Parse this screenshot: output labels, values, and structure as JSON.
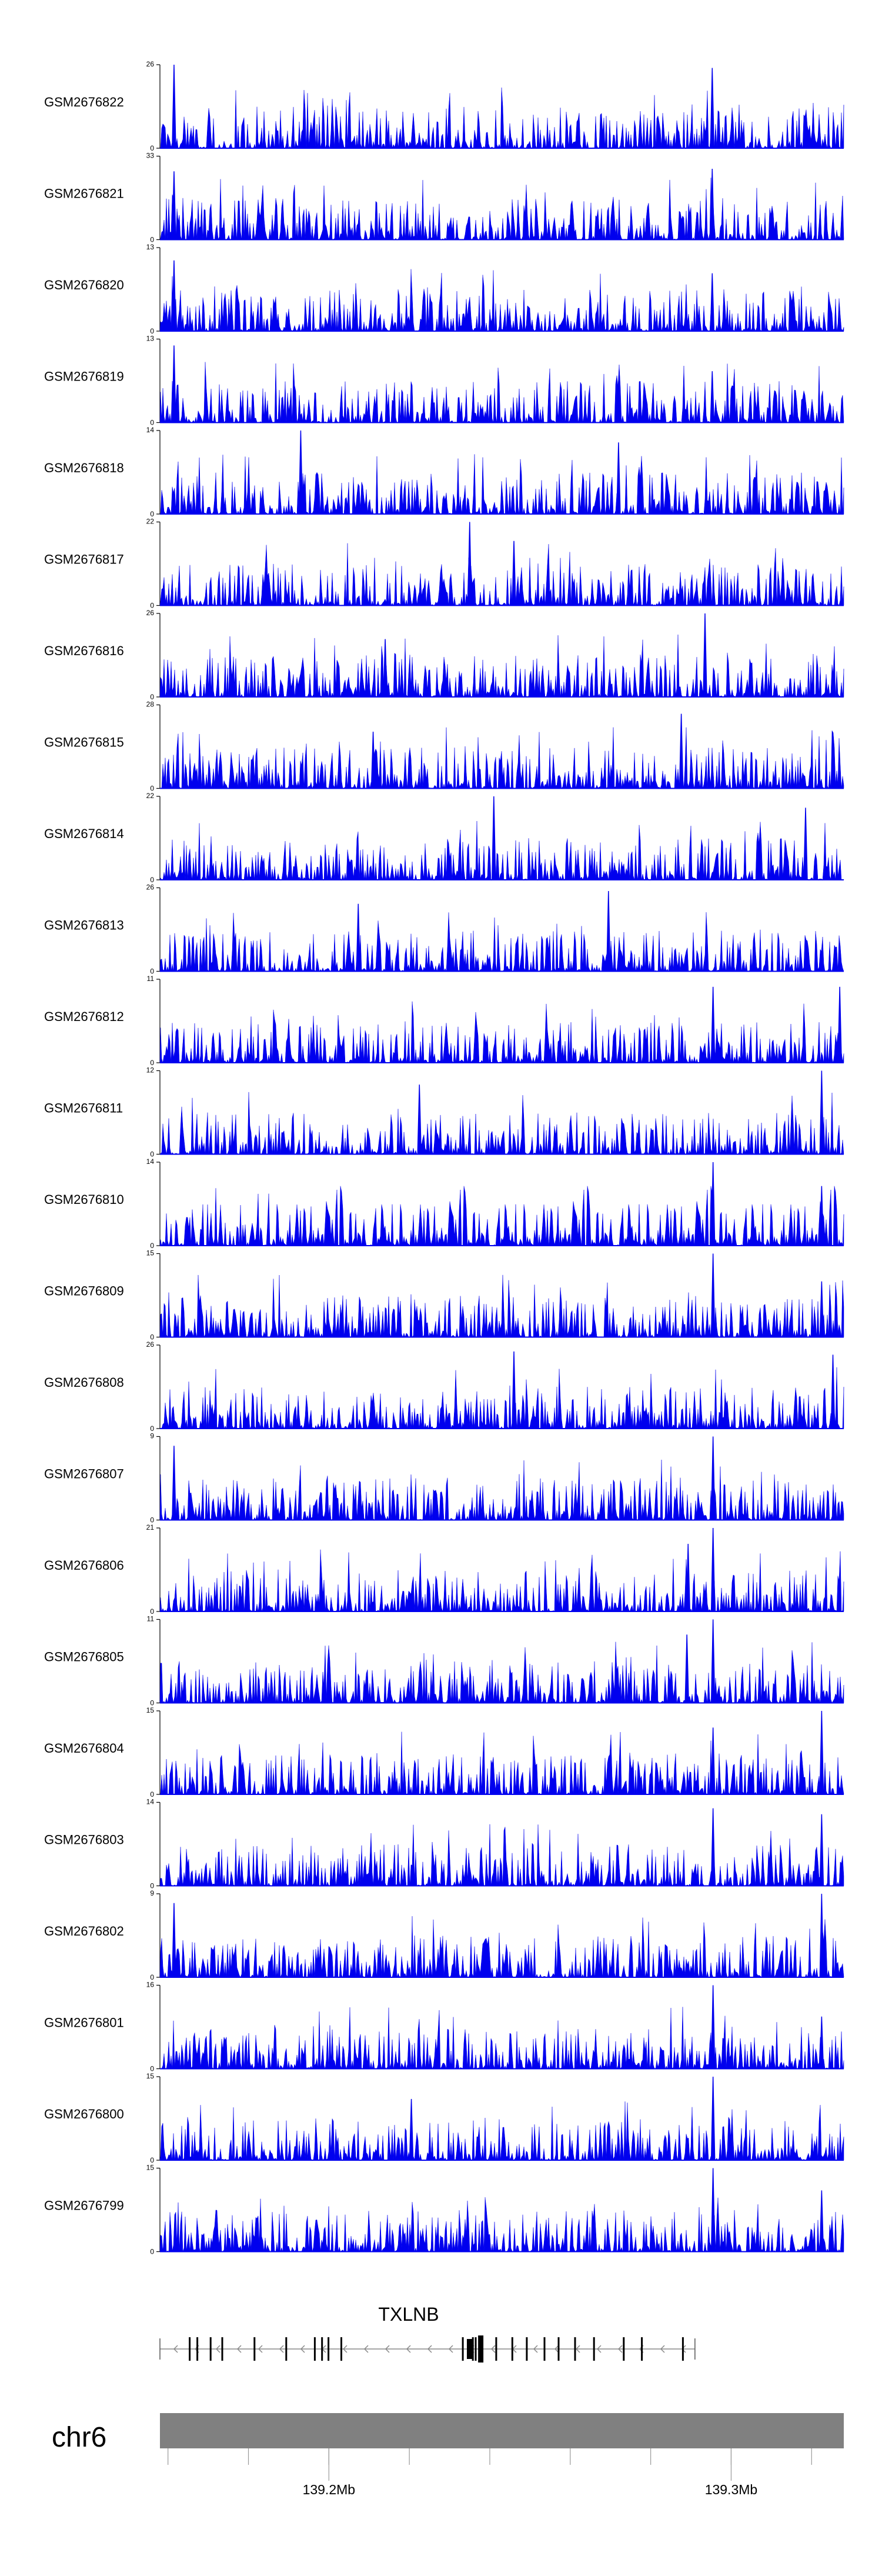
{
  "chart_data": {
    "type": "area",
    "title": "",
    "chromosome": "chr6",
    "fill_color": "#0000EE",
    "axis_color": "#000000",
    "x_range_mb": [
      139.158,
      139.328
    ],
    "tracks": [
      {
        "name": "GSM2676822",
        "ymax": 26,
        "ymin": 0,
        "peaks": [
          [
            139.1615,
            26
          ],
          [
            139.2953,
            25
          ]
        ]
      },
      {
        "name": "GSM2676821",
        "ymax": 33,
        "ymin": 0,
        "peaks": [
          [
            139.1615,
            27
          ],
          [
            139.2953,
            28
          ]
        ]
      },
      {
        "name": "GSM2676820",
        "ymax": 13,
        "ymin": 0,
        "peaks": [
          [
            139.1615,
            11
          ],
          [
            139.2953,
            9
          ]
        ]
      },
      {
        "name": "GSM2676819",
        "ymax": 13,
        "ymin": 0,
        "peaks": [
          [
            139.1615,
            12
          ],
          [
            139.2953,
            8
          ]
        ]
      },
      {
        "name": "GSM2676818",
        "ymax": 14,
        "ymin": 0,
        "peaks": [
          [
            139.193,
            14
          ],
          [
            139.272,
            12
          ]
        ]
      },
      {
        "name": "GSM2676817",
        "ymax": 22,
        "ymin": 0,
        "peaks": [
          [
            139.235,
            22
          ],
          [
            139.246,
            17
          ]
        ]
      },
      {
        "name": "GSM2676816",
        "ymax": 26,
        "ymin": 0,
        "peaks": [
          [
            139.2935,
            26
          ],
          [
            139.214,
            18
          ]
        ]
      },
      {
        "name": "GSM2676815",
        "ymax": 28,
        "ymin": 0,
        "peaks": [
          [
            139.2876,
            25
          ],
          [
            139.211,
            19
          ]
        ]
      },
      {
        "name": "GSM2676814",
        "ymax": 22,
        "ymin": 0,
        "peaks": [
          [
            139.241,
            22
          ],
          [
            139.3185,
            19
          ]
        ]
      },
      {
        "name": "GSM2676813",
        "ymax": 26,
        "ymin": 0,
        "peaks": [
          [
            139.2073,
            21
          ],
          [
            139.2695,
            25
          ]
        ]
      },
      {
        "name": "GSM2676812",
        "ymax": 11,
        "ymin": 0,
        "peaks": [
          [
            139.2955,
            10
          ],
          [
            139.327,
            10
          ]
        ]
      },
      {
        "name": "GSM2676811",
        "ymax": 12,
        "ymin": 0,
        "peaks": [
          [
            139.3225,
            12
          ],
          [
            139.2225,
            10
          ]
        ]
      },
      {
        "name": "GSM2676810",
        "ymax": 14,
        "ymin": 0,
        "peaks": [
          [
            139.2955,
            14
          ],
          [
            139.3225,
            10
          ]
        ]
      },
      {
        "name": "GSM2676809",
        "ymax": 15,
        "ymin": 0,
        "peaks": [
          [
            139.2955,
            15
          ],
          [
            139.3225,
            10
          ]
        ]
      },
      {
        "name": "GSM2676808",
        "ymax": 26,
        "ymin": 0,
        "peaks": [
          [
            139.246,
            24
          ],
          [
            139.3253,
            23
          ]
        ]
      },
      {
        "name": "GSM2676807",
        "ymax": 9,
        "ymin": 0,
        "peaks": [
          [
            139.2955,
            9
          ],
          [
            139.1615,
            8
          ]
        ]
      },
      {
        "name": "GSM2676806",
        "ymax": 21,
        "ymin": 0,
        "peaks": [
          [
            139.2955,
            21
          ],
          [
            139.2893,
            17
          ]
        ]
      },
      {
        "name": "GSM2676805",
        "ymax": 11,
        "ymin": 0,
        "peaks": [
          [
            139.2955,
            11
          ],
          [
            139.289,
            9
          ]
        ]
      },
      {
        "name": "GSM2676804",
        "ymax": 15,
        "ymin": 0,
        "peaks": [
          [
            139.3225,
            15
          ],
          [
            139.2955,
            12
          ]
        ]
      },
      {
        "name": "GSM2676803",
        "ymax": 14,
        "ymin": 0,
        "peaks": [
          [
            139.2955,
            13
          ],
          [
            139.3225,
            12
          ]
        ]
      },
      {
        "name": "GSM2676802",
        "ymax": 9,
        "ymin": 0,
        "peaks": [
          [
            139.3225,
            9
          ],
          [
            139.1615,
            8
          ]
        ]
      },
      {
        "name": "GSM2676801",
        "ymax": 16,
        "ymin": 0,
        "peaks": [
          [
            139.2955,
            16
          ],
          [
            139.3225,
            10
          ]
        ]
      },
      {
        "name": "GSM2676800",
        "ymax": 15,
        "ymin": 0,
        "peaks": [
          [
            139.2955,
            15
          ],
          [
            139.2205,
            11
          ]
        ]
      },
      {
        "name": "GSM2676799",
        "ymax": 15,
        "ymin": 0,
        "peaks": [
          [
            139.2955,
            15
          ],
          [
            139.3225,
            11
          ]
        ]
      }
    ],
    "gene": {
      "name": "TXLNB",
      "strand": "-",
      "start_mb": 139.158,
      "end_mb": 139.291,
      "exons_mb": [
        139.1654,
        139.1673,
        139.1706,
        139.1735,
        139.1815,
        139.1894,
        139.1965,
        139.1983,
        139.1999,
        139.2031,
        139.2333,
        139.2358,
        139.2365,
        139.2376,
        139.2379,
        139.2416,
        139.2456,
        139.2492,
        139.2536,
        139.2571,
        139.2612,
        139.2659,
        139.2733,
        139.2778,
        139.288
      ]
    },
    "ideogram": {
      "color": "#808080",
      "ticks_mb": [
        139.16,
        139.18,
        139.2,
        139.22,
        139.24,
        139.26,
        139.28,
        139.3,
        139.32
      ],
      "labels": [
        "139.2Mb",
        "139.3Mb"
      ],
      "label_positions_mb": [
        139.2,
        139.3
      ]
    }
  }
}
